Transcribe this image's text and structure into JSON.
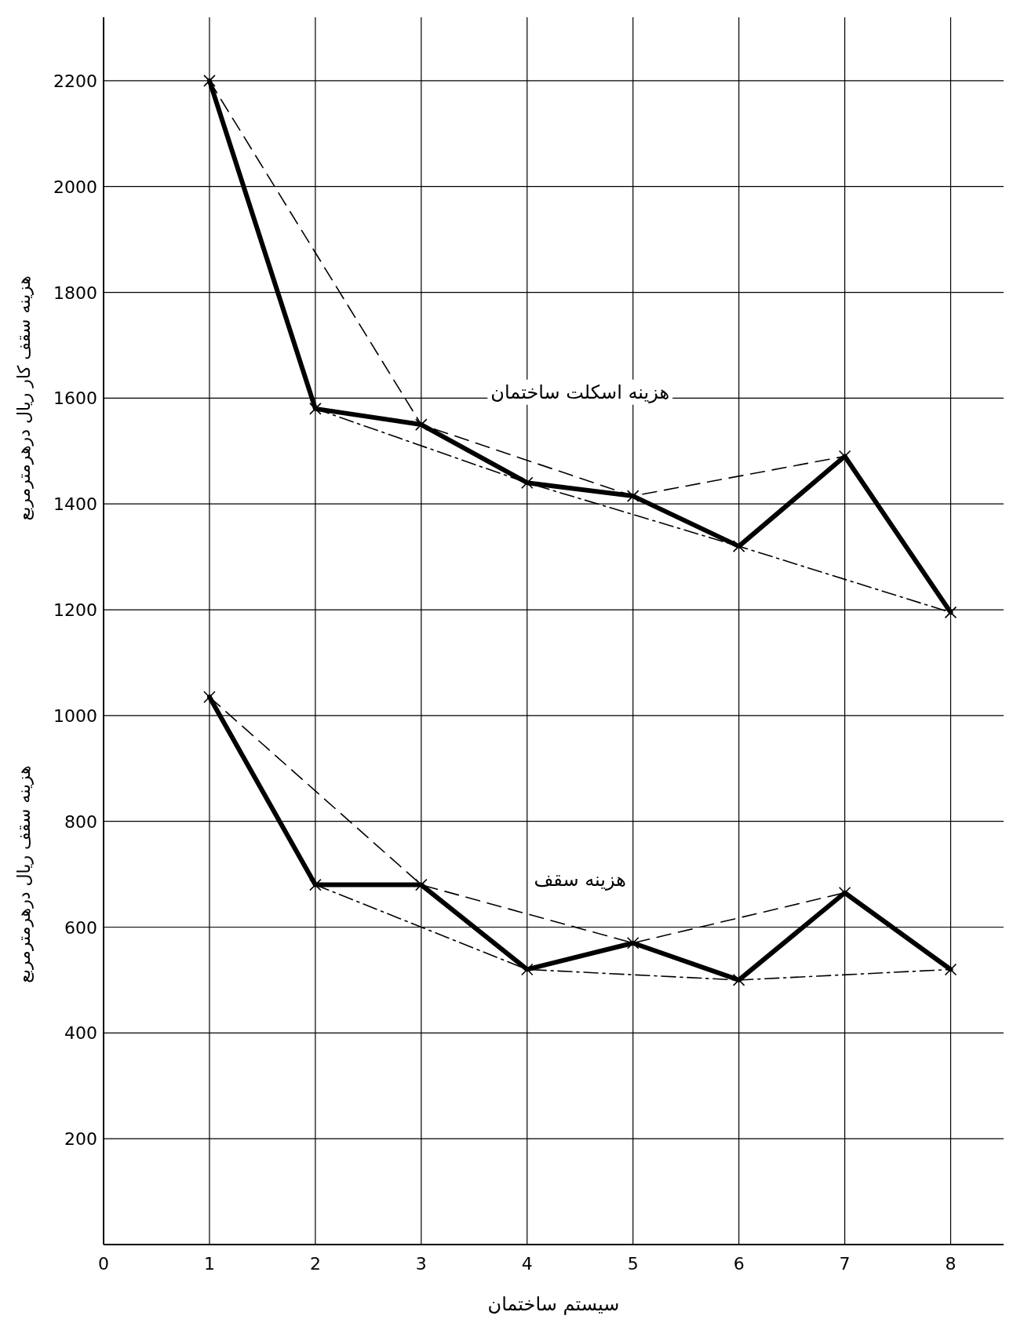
{
  "chart_data": {
    "type": "line",
    "xlabel": "سیستم ساختمان",
    "ylabel": "هزینه سقف کار ریال درهرمترمربع",
    "annotations": [
      {
        "text": "هزینه سقف ریال درهرمترمربع"
      }
    ],
    "x": [
      1,
      2,
      3,
      4,
      5,
      6,
      7,
      8
    ],
    "series": [
      {
        "name": "هزینه اسکلت ساختمان",
        "color": "#000000",
        "line_style": "solid",
        "marker": "cross",
        "values": [
          2200,
          1580,
          1550,
          1440,
          1415,
          1320,
          1490,
          1195
        ]
      },
      {
        "color": "#000000",
        "line_style": "dashed",
        "x": [
          1,
          3,
          5,
          7
        ],
        "values": [
          2200,
          1550,
          1415,
          1490
        ]
      },
      {
        "color": "#000000",
        "line_style": "dashdot",
        "x": [
          2,
          4,
          6,
          8
        ],
        "values": [
          1580,
          1440,
          1320,
          1195
        ]
      },
      {
        "name": "هزینه سقف",
        "color": "#000000",
        "line_style": "solid",
        "marker": "cross",
        "values": [
          1035,
          680,
          680,
          520,
          570,
          500,
          665,
          520
        ]
      },
      {
        "color": "#000000",
        "line_style": "dashed",
        "x": [
          1,
          3,
          5,
          7
        ],
        "values": [
          1035,
          680,
          570,
          665
        ]
      },
      {
        "color": "#000000",
        "line_style": "dashdot",
        "x": [
          2,
          4,
          6,
          8
        ],
        "values": [
          680,
          520,
          500,
          520
        ]
      }
    ],
    "xlim": [
      0,
      8.5
    ],
    "ylim": [
      0,
      2320
    ],
    "xticks": [
      0,
      1,
      2,
      3,
      4,
      5,
      6,
      7,
      8
    ],
    "yticks": [
      200,
      400,
      600,
      800,
      1000,
      1200,
      1400,
      1600,
      1800,
      2000,
      2200
    ],
    "grid": true
  }
}
